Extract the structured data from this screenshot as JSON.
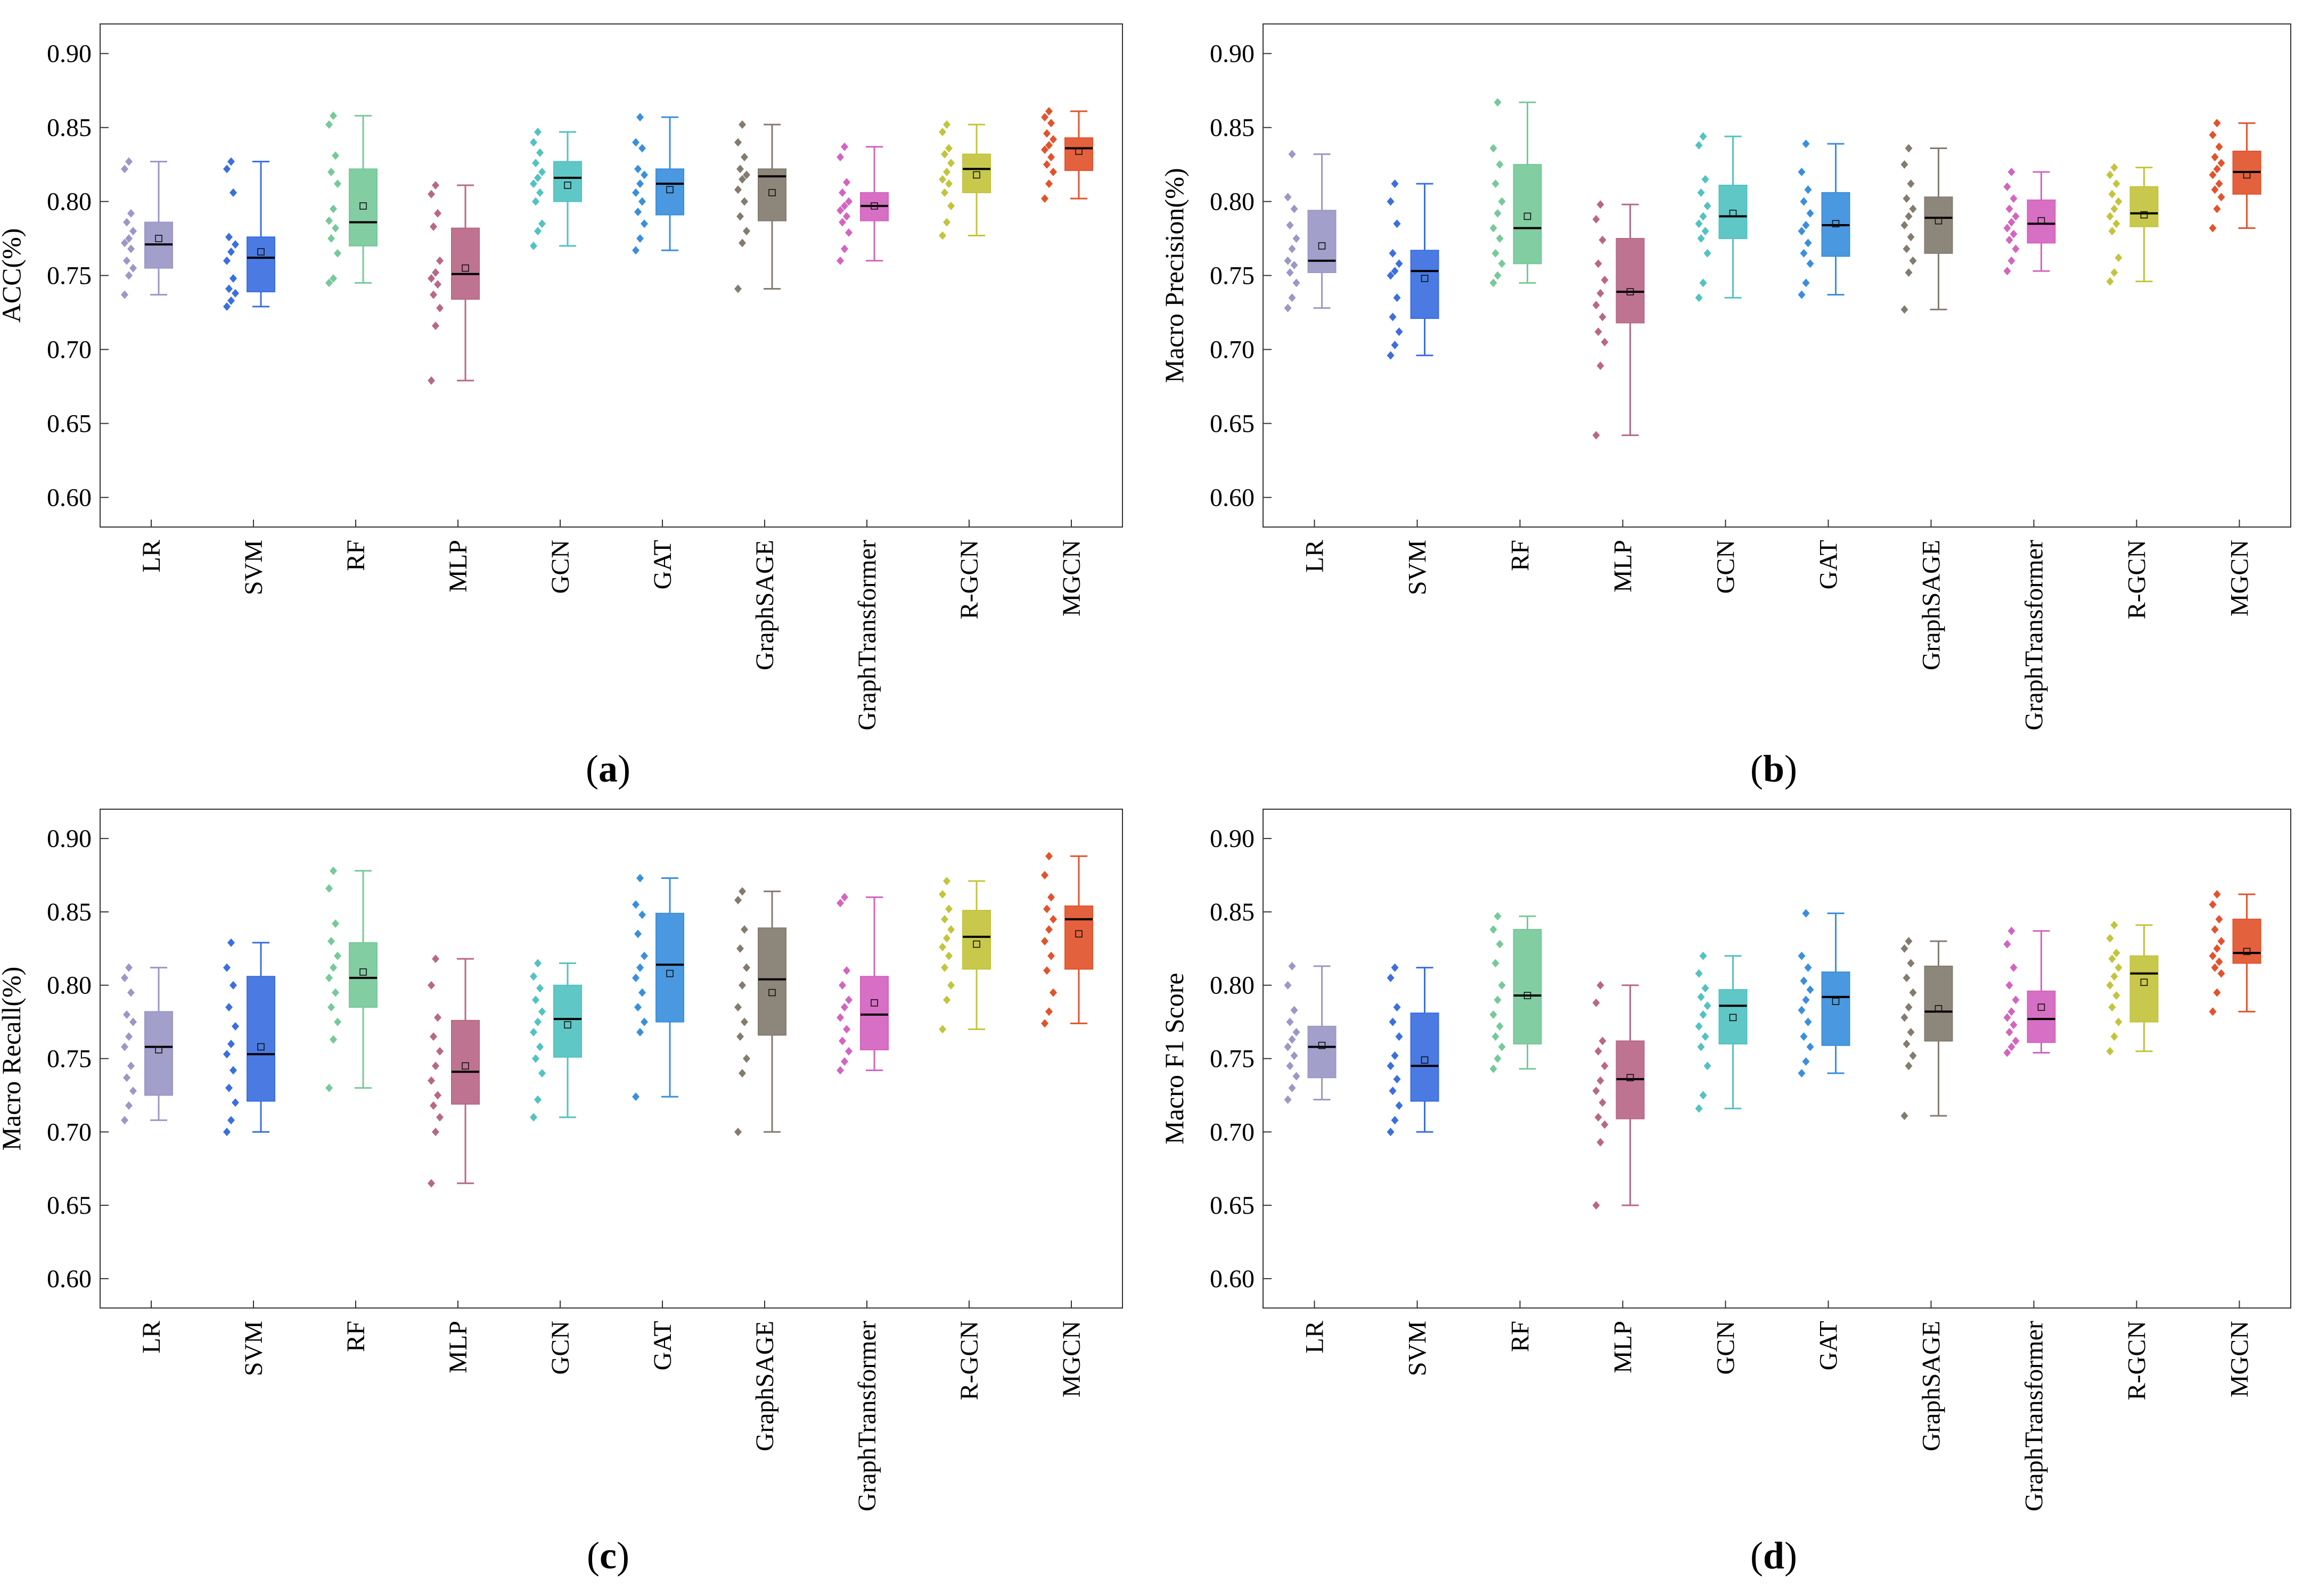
{
  "categories": [
    "LR",
    "SVM",
    "RF",
    "MLP",
    "GCN",
    "GAT",
    "GraphSAGE",
    "GraphTransformer",
    "R-GCN",
    "MGCN"
  ],
  "colors": [
    "#9b97c6",
    "#3b6fe0",
    "#77c99a",
    "#b86886",
    "#52c2c2",
    "#3a8fdc",
    "#837c6e",
    "#d464bf",
    "#c3c43c",
    "#e2532c"
  ],
  "chart_data": [
    {
      "type": "box",
      "panel_label_open": "(",
      "panel_letter": "a",
      "panel_label_close": ")",
      "ylabel": "ACC(%)",
      "ylim": [
        0.58,
        0.92
      ],
      "yticks": [
        "0.60",
        "0.65",
        "0.70",
        "0.75",
        "0.80",
        "0.85",
        "0.90"
      ],
      "boxes": [
        {
          "q1": 0.755,
          "median": 0.771,
          "q3": 0.786,
          "whisker_low": 0.737,
          "whisker_high": 0.827,
          "mean": 0.775,
          "points": [
            0.737,
            0.75,
            0.755,
            0.76,
            0.768,
            0.772,
            0.775,
            0.78,
            0.786,
            0.792,
            0.822,
            0.827
          ]
        },
        {
          "q1": 0.739,
          "median": 0.762,
          "q3": 0.776,
          "whisker_low": 0.729,
          "whisker_high": 0.827,
          "mean": 0.766,
          "points": [
            0.729,
            0.733,
            0.738,
            0.741,
            0.748,
            0.76,
            0.766,
            0.771,
            0.776,
            0.806,
            0.822,
            0.827
          ]
        },
        {
          "q1": 0.77,
          "median": 0.786,
          "q3": 0.822,
          "whisker_low": 0.745,
          "whisker_high": 0.858,
          "mean": 0.797,
          "points": [
            0.745,
            0.748,
            0.765,
            0.775,
            0.782,
            0.787,
            0.795,
            0.812,
            0.82,
            0.831,
            0.852,
            0.858
          ]
        },
        {
          "q1": 0.734,
          "median": 0.751,
          "q3": 0.782,
          "whisker_low": 0.679,
          "whisker_high": 0.811,
          "mean": 0.755,
          "points": [
            0.679,
            0.716,
            0.728,
            0.737,
            0.744,
            0.748,
            0.752,
            0.76,
            0.783,
            0.792,
            0.805,
            0.811
          ]
        },
        {
          "q1": 0.8,
          "median": 0.816,
          "q3": 0.827,
          "whisker_low": 0.77,
          "whisker_high": 0.847,
          "mean": 0.811,
          "points": [
            0.77,
            0.78,
            0.785,
            0.8,
            0.806,
            0.812,
            0.816,
            0.82,
            0.826,
            0.833,
            0.84,
            0.847
          ]
        },
        {
          "q1": 0.791,
          "median": 0.812,
          "q3": 0.822,
          "whisker_low": 0.767,
          "whisker_high": 0.857,
          "mean": 0.808,
          "points": [
            0.767,
            0.775,
            0.785,
            0.793,
            0.8,
            0.806,
            0.812,
            0.818,
            0.822,
            0.836,
            0.84,
            0.857
          ]
        },
        {
          "q1": 0.787,
          "median": 0.817,
          "q3": 0.822,
          "whisker_low": 0.741,
          "whisker_high": 0.852,
          "mean": 0.806,
          "points": [
            0.741,
            0.772,
            0.78,
            0.79,
            0.8,
            0.808,
            0.815,
            0.818,
            0.822,
            0.83,
            0.84,
            0.852
          ]
        },
        {
          "q1": 0.787,
          "median": 0.797,
          "q3": 0.806,
          "whisker_low": 0.76,
          "whisker_high": 0.837,
          "mean": 0.797,
          "points": [
            0.76,
            0.768,
            0.779,
            0.786,
            0.79,
            0.794,
            0.797,
            0.8,
            0.806,
            0.813,
            0.83,
            0.837
          ]
        },
        {
          "q1": 0.806,
          "median": 0.822,
          "q3": 0.832,
          "whisker_low": 0.777,
          "whisker_high": 0.852,
          "mean": 0.818,
          "points": [
            0.777,
            0.786,
            0.797,
            0.806,
            0.812,
            0.815,
            0.82,
            0.826,
            0.832,
            0.836,
            0.847,
            0.852
          ]
        },
        {
          "q1": 0.821,
          "median": 0.836,
          "q3": 0.843,
          "whisker_low": 0.802,
          "whisker_high": 0.861,
          "mean": 0.834,
          "points": [
            0.802,
            0.812,
            0.82,
            0.825,
            0.83,
            0.835,
            0.838,
            0.842,
            0.846,
            0.853,
            0.857,
            0.861
          ]
        }
      ]
    },
    {
      "type": "box",
      "panel_label_open": "(",
      "panel_letter": "b",
      "panel_label_close": ")",
      "ylabel": "Macro Precision(%)",
      "ylim": [
        0.58,
        0.92
      ],
      "yticks": [
        "0.60",
        "0.65",
        "0.70",
        "0.75",
        "0.80",
        "0.85",
        "0.90"
      ],
      "boxes": [
        {
          "q1": 0.752,
          "median": 0.76,
          "q3": 0.794,
          "whisker_low": 0.728,
          "whisker_high": 0.832,
          "mean": 0.77,
          "points": [
            0.728,
            0.735,
            0.745,
            0.752,
            0.757,
            0.76,
            0.768,
            0.775,
            0.784,
            0.795,
            0.803,
            0.832
          ]
        },
        {
          "q1": 0.721,
          "median": 0.753,
          "q3": 0.767,
          "whisker_low": 0.696,
          "whisker_high": 0.812,
          "mean": 0.748,
          "points": [
            0.696,
            0.703,
            0.712,
            0.722,
            0.735,
            0.75,
            0.753,
            0.758,
            0.765,
            0.785,
            0.8,
            0.812
          ]
        },
        {
          "q1": 0.758,
          "median": 0.782,
          "q3": 0.825,
          "whisker_low": 0.745,
          "whisker_high": 0.867,
          "mean": 0.79,
          "points": [
            0.745,
            0.75,
            0.758,
            0.765,
            0.775,
            0.782,
            0.792,
            0.8,
            0.812,
            0.825,
            0.836,
            0.867
          ]
        },
        {
          "q1": 0.718,
          "median": 0.739,
          "q3": 0.775,
          "whisker_low": 0.642,
          "whisker_high": 0.798,
          "mean": 0.739,
          "points": [
            0.642,
            0.689,
            0.705,
            0.712,
            0.722,
            0.73,
            0.738,
            0.747,
            0.758,
            0.774,
            0.788,
            0.798
          ]
        },
        {
          "q1": 0.775,
          "median": 0.79,
          "q3": 0.811,
          "whisker_low": 0.735,
          "whisker_high": 0.844,
          "mean": 0.792,
          "points": [
            0.735,
            0.745,
            0.765,
            0.775,
            0.78,
            0.785,
            0.79,
            0.797,
            0.806,
            0.815,
            0.838,
            0.844
          ]
        },
        {
          "q1": 0.763,
          "median": 0.784,
          "q3": 0.806,
          "whisker_low": 0.737,
          "whisker_high": 0.839,
          "mean": 0.785,
          "points": [
            0.737,
            0.745,
            0.758,
            0.765,
            0.772,
            0.78,
            0.784,
            0.792,
            0.8,
            0.808,
            0.82,
            0.839
          ]
        },
        {
          "q1": 0.765,
          "median": 0.789,
          "q3": 0.803,
          "whisker_low": 0.727,
          "whisker_high": 0.836,
          "mean": 0.787,
          "points": [
            0.727,
            0.752,
            0.76,
            0.768,
            0.776,
            0.784,
            0.79,
            0.795,
            0.802,
            0.812,
            0.825,
            0.836
          ]
        },
        {
          "q1": 0.772,
          "median": 0.785,
          "q3": 0.801,
          "whisker_low": 0.753,
          "whisker_high": 0.82,
          "mean": 0.787,
          "points": [
            0.753,
            0.76,
            0.768,
            0.774,
            0.778,
            0.782,
            0.786,
            0.79,
            0.795,
            0.802,
            0.81,
            0.82
          ]
        },
        {
          "q1": 0.783,
          "median": 0.792,
          "q3": 0.81,
          "whisker_low": 0.746,
          "whisker_high": 0.823,
          "mean": 0.791,
          "points": [
            0.746,
            0.752,
            0.762,
            0.78,
            0.785,
            0.79,
            0.795,
            0.8,
            0.805,
            0.812,
            0.818,
            0.823
          ]
        },
        {
          "q1": 0.805,
          "median": 0.82,
          "q3": 0.834,
          "whisker_low": 0.782,
          "whisker_high": 0.853,
          "mean": 0.818,
          "points": [
            0.782,
            0.795,
            0.803,
            0.808,
            0.812,
            0.818,
            0.822,
            0.826,
            0.83,
            0.837,
            0.845,
            0.853
          ]
        }
      ]
    },
    {
      "type": "box",
      "panel_label_open": "(",
      "panel_letter": "c",
      "panel_label_close": ")",
      "ylabel": "Macro Recall(%)",
      "ylim": [
        0.58,
        0.92
      ],
      "yticks": [
        "0.60",
        "0.65",
        "0.70",
        "0.75",
        "0.80",
        "0.85",
        "0.90"
      ],
      "boxes": [
        {
          "q1": 0.725,
          "median": 0.758,
          "q3": 0.782,
          "whisker_low": 0.708,
          "whisker_high": 0.812,
          "mean": 0.756,
          "points": [
            0.708,
            0.718,
            0.728,
            0.737,
            0.745,
            0.758,
            0.765,
            0.775,
            0.78,
            0.795,
            0.805,
            0.812
          ]
        },
        {
          "q1": 0.721,
          "median": 0.753,
          "q3": 0.806,
          "whisker_low": 0.7,
          "whisker_high": 0.829,
          "mean": 0.758,
          "points": [
            0.7,
            0.708,
            0.72,
            0.73,
            0.742,
            0.753,
            0.76,
            0.772,
            0.785,
            0.8,
            0.812,
            0.829
          ]
        },
        {
          "q1": 0.785,
          "median": 0.805,
          "q3": 0.829,
          "whisker_low": 0.73,
          "whisker_high": 0.878,
          "mean": 0.809,
          "points": [
            0.73,
            0.763,
            0.775,
            0.785,
            0.795,
            0.805,
            0.812,
            0.82,
            0.83,
            0.842,
            0.866,
            0.878
          ]
        },
        {
          "q1": 0.719,
          "median": 0.741,
          "q3": 0.776,
          "whisker_low": 0.665,
          "whisker_high": 0.818,
          "mean": 0.745,
          "points": [
            0.665,
            0.7,
            0.71,
            0.718,
            0.725,
            0.735,
            0.745,
            0.755,
            0.765,
            0.778,
            0.8,
            0.818
          ]
        },
        {
          "q1": 0.751,
          "median": 0.777,
          "q3": 0.8,
          "whisker_low": 0.71,
          "whisker_high": 0.815,
          "mean": 0.773,
          "points": [
            0.71,
            0.722,
            0.74,
            0.75,
            0.758,
            0.768,
            0.775,
            0.782,
            0.79,
            0.798,
            0.806,
            0.815
          ]
        },
        {
          "q1": 0.775,
          "median": 0.814,
          "q3": 0.849,
          "whisker_low": 0.724,
          "whisker_high": 0.873,
          "mean": 0.808,
          "points": [
            0.724,
            0.768,
            0.775,
            0.785,
            0.795,
            0.805,
            0.812,
            0.82,
            0.835,
            0.848,
            0.855,
            0.873
          ]
        },
        {
          "q1": 0.766,
          "median": 0.804,
          "q3": 0.839,
          "whisker_low": 0.7,
          "whisker_high": 0.864,
          "mean": 0.795,
          "points": [
            0.7,
            0.74,
            0.75,
            0.765,
            0.775,
            0.785,
            0.8,
            0.812,
            0.825,
            0.838,
            0.858,
            0.864
          ]
        },
        {
          "q1": 0.756,
          "median": 0.78,
          "q3": 0.806,
          "whisker_low": 0.742,
          "whisker_high": 0.86,
          "mean": 0.788,
          "points": [
            0.742,
            0.748,
            0.755,
            0.762,
            0.77,
            0.778,
            0.785,
            0.79,
            0.8,
            0.81,
            0.856,
            0.86
          ]
        },
        {
          "q1": 0.811,
          "median": 0.833,
          "q3": 0.851,
          "whisker_low": 0.77,
          "whisker_high": 0.871,
          "mean": 0.828,
          "points": [
            0.77,
            0.79,
            0.8,
            0.812,
            0.82,
            0.826,
            0.832,
            0.838,
            0.845,
            0.852,
            0.862,
            0.871
          ]
        },
        {
          "q1": 0.811,
          "median": 0.845,
          "q3": 0.854,
          "whisker_low": 0.774,
          "whisker_high": 0.888,
          "mean": 0.835,
          "points": [
            0.774,
            0.782,
            0.795,
            0.81,
            0.82,
            0.83,
            0.838,
            0.845,
            0.852,
            0.86,
            0.875,
            0.888
          ]
        }
      ]
    },
    {
      "type": "box",
      "panel_label_open": "(",
      "panel_letter": "d",
      "panel_label_close": ")",
      "ylabel": "Macro F1 Score",
      "ylim": [
        0.58,
        0.92
      ],
      "yticks": [
        "0.60",
        "0.65",
        "0.70",
        "0.75",
        "0.80",
        "0.85",
        "0.90"
      ],
      "boxes": [
        {
          "q1": 0.737,
          "median": 0.758,
          "q3": 0.772,
          "whisker_low": 0.722,
          "whisker_high": 0.813,
          "mean": 0.759,
          "points": [
            0.722,
            0.73,
            0.738,
            0.745,
            0.752,
            0.758,
            0.763,
            0.768,
            0.775,
            0.783,
            0.8,
            0.813
          ]
        },
        {
          "q1": 0.721,
          "median": 0.745,
          "q3": 0.781,
          "whisker_low": 0.7,
          "whisker_high": 0.812,
          "mean": 0.749,
          "points": [
            0.7,
            0.708,
            0.718,
            0.728,
            0.736,
            0.745,
            0.752,
            0.765,
            0.775,
            0.785,
            0.805,
            0.812
          ]
        },
        {
          "q1": 0.76,
          "median": 0.793,
          "q3": 0.838,
          "whisker_low": 0.743,
          "whisker_high": 0.847,
          "mean": 0.793,
          "points": [
            0.743,
            0.75,
            0.758,
            0.765,
            0.772,
            0.78,
            0.79,
            0.8,
            0.815,
            0.828,
            0.838,
            0.847
          ]
        },
        {
          "q1": 0.709,
          "median": 0.736,
          "q3": 0.762,
          "whisker_low": 0.65,
          "whisker_high": 0.8,
          "mean": 0.737,
          "points": [
            0.65,
            0.693,
            0.705,
            0.71,
            0.72,
            0.728,
            0.735,
            0.745,
            0.755,
            0.762,
            0.788,
            0.8
          ]
        },
        {
          "q1": 0.76,
          "median": 0.786,
          "q3": 0.797,
          "whisker_low": 0.716,
          "whisker_high": 0.82,
          "mean": 0.778,
          "points": [
            0.716,
            0.725,
            0.745,
            0.758,
            0.765,
            0.772,
            0.78,
            0.786,
            0.792,
            0.798,
            0.808,
            0.82
          ]
        },
        {
          "q1": 0.759,
          "median": 0.792,
          "q3": 0.809,
          "whisker_low": 0.74,
          "whisker_high": 0.849,
          "mean": 0.789,
          "points": [
            0.74,
            0.748,
            0.758,
            0.765,
            0.775,
            0.783,
            0.79,
            0.797,
            0.803,
            0.812,
            0.82,
            0.849
          ]
        },
        {
          "q1": 0.762,
          "median": 0.782,
          "q3": 0.813,
          "whisker_low": 0.711,
          "whisker_high": 0.83,
          "mean": 0.784,
          "points": [
            0.711,
            0.745,
            0.752,
            0.76,
            0.768,
            0.778,
            0.785,
            0.795,
            0.805,
            0.815,
            0.825,
            0.83
          ]
        },
        {
          "q1": 0.761,
          "median": 0.777,
          "q3": 0.796,
          "whisker_low": 0.754,
          "whisker_high": 0.837,
          "mean": 0.785,
          "points": [
            0.754,
            0.758,
            0.762,
            0.768,
            0.773,
            0.778,
            0.782,
            0.79,
            0.8,
            0.812,
            0.828,
            0.837
          ]
        },
        {
          "q1": 0.775,
          "median": 0.808,
          "q3": 0.82,
          "whisker_low": 0.755,
          "whisker_high": 0.841,
          "mean": 0.802,
          "points": [
            0.755,
            0.765,
            0.775,
            0.785,
            0.793,
            0.8,
            0.806,
            0.812,
            0.818,
            0.822,
            0.832,
            0.841
          ]
        },
        {
          "q1": 0.815,
          "median": 0.822,
          "q3": 0.845,
          "whisker_low": 0.782,
          "whisker_high": 0.862,
          "mean": 0.823,
          "points": [
            0.782,
            0.795,
            0.808,
            0.812,
            0.816,
            0.82,
            0.825,
            0.83,
            0.838,
            0.845,
            0.855,
            0.862
          ]
        }
      ]
    }
  ]
}
